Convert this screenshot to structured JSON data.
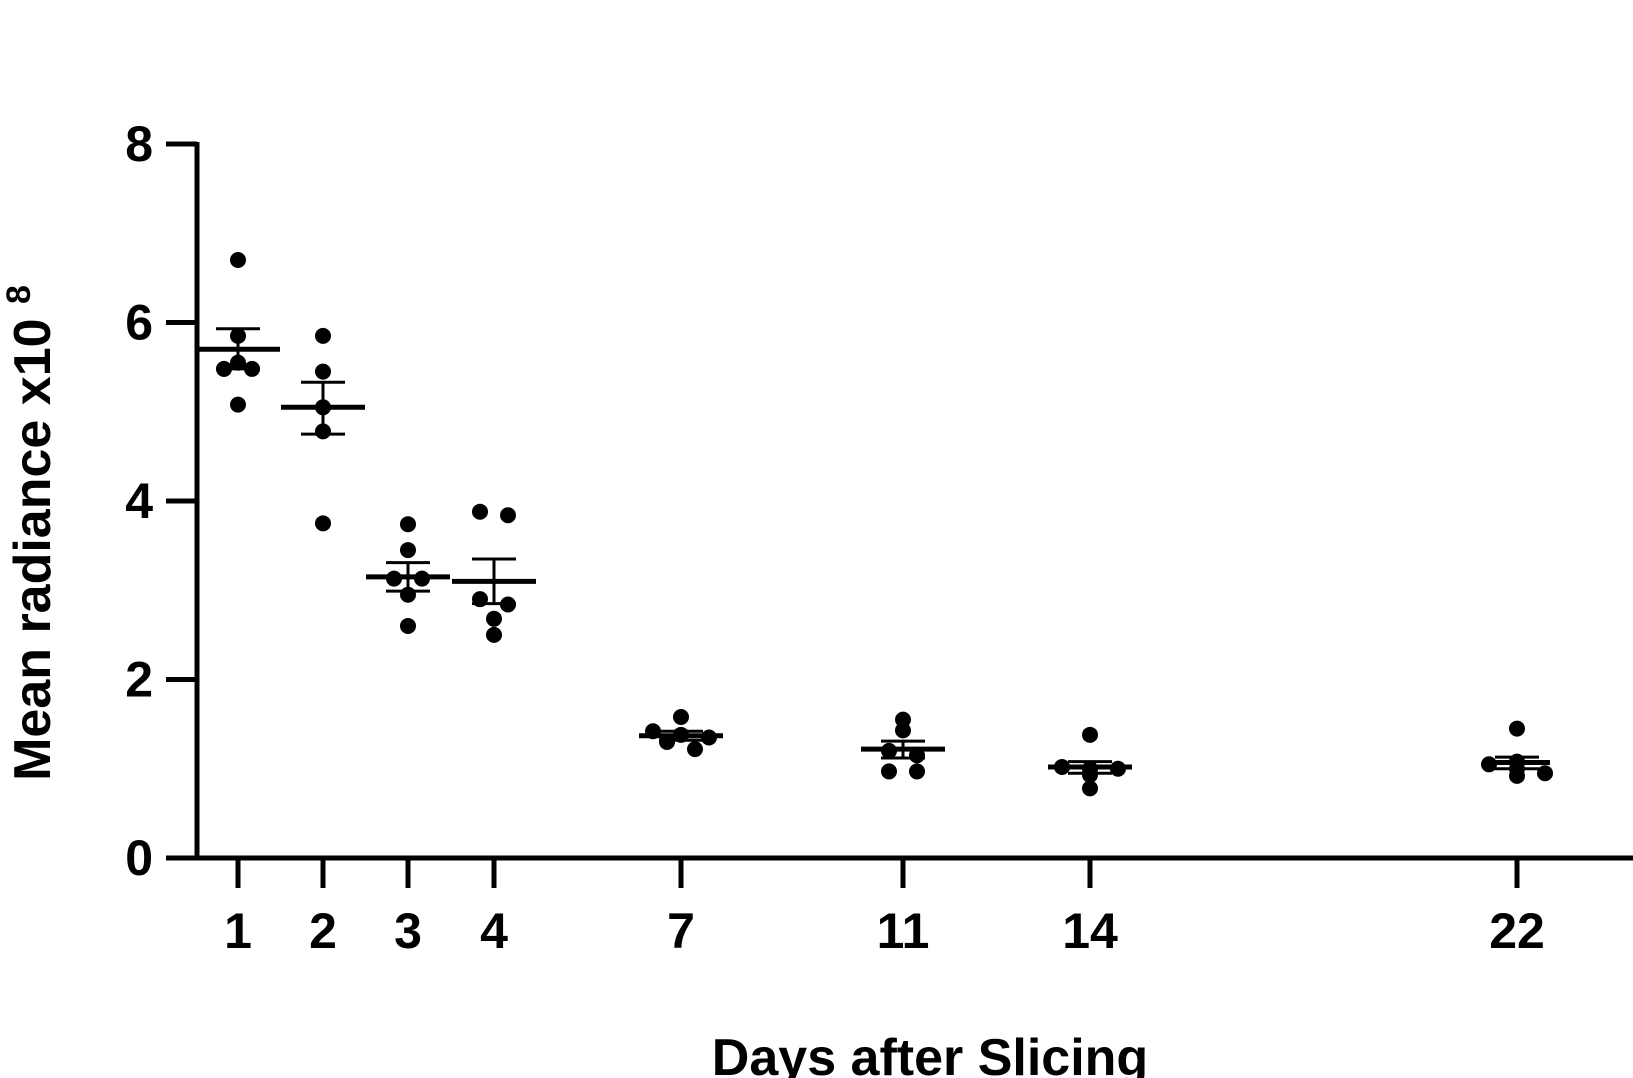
{
  "chart_data": {
    "type": "scatter",
    "title": "",
    "xlabel": "Days after Slicing",
    "ylabel": "Mean radiance x10",
    "ylabel_superscript": "8",
    "ylim": [
      0,
      8
    ],
    "yticks": [
      "0",
      "2",
      "4",
      "6",
      "8"
    ],
    "xticks": [
      "1",
      "2",
      "3",
      "4",
      "7",
      "11",
      "14",
      "22"
    ],
    "groups": [
      {
        "day": 1,
        "label": "1",
        "points": [
          6.7,
          5.85,
          5.55,
          5.48,
          5.48,
          5.08
        ],
        "mean": 5.7,
        "sem_low": 5.48,
        "sem_high": 5.93
      },
      {
        "day": 2,
        "label": "2",
        "points": [
          5.85,
          5.45,
          5.05,
          4.78,
          3.75
        ],
        "mean": 5.05,
        "sem_low": 4.75,
        "sem_high": 5.33
      },
      {
        "day": 3,
        "label": "3",
        "points": [
          3.74,
          3.45,
          3.13,
          3.13,
          2.95,
          2.6
        ],
        "mean": 3.15,
        "sem_low": 2.99,
        "sem_high": 3.31
      },
      {
        "day": 4,
        "label": "4",
        "points": [
          3.88,
          3.84,
          2.9,
          2.84,
          2.68,
          2.5
        ],
        "mean": 3.1,
        "sem_low": 2.85,
        "sem_high": 3.35
      },
      {
        "day": 7,
        "label": "7",
        "points": [
          1.58,
          1.42,
          1.38,
          1.35,
          1.3,
          1.22
        ],
        "mean": 1.37,
        "sem_low": 1.32,
        "sem_high": 1.42
      },
      {
        "day": 11,
        "label": "11",
        "points": [
          1.55,
          1.43,
          1.2,
          1.15,
          0.97,
          0.97
        ],
        "mean": 1.22,
        "sem_low": 1.12,
        "sem_high": 1.31
      },
      {
        "day": 14,
        "label": "14",
        "points": [
          1.38,
          1.02,
          1.0,
          1.0,
          0.93,
          0.78
        ],
        "mean": 1.02,
        "sem_low": 0.95,
        "sem_high": 1.08
      },
      {
        "day": 22,
        "label": "22",
        "points": [
          1.45,
          1.08,
          1.05,
          1.0,
          0.95,
          0.92
        ],
        "mean": 1.07,
        "sem_low": 1.0,
        "sem_high": 1.13
      }
    ]
  }
}
